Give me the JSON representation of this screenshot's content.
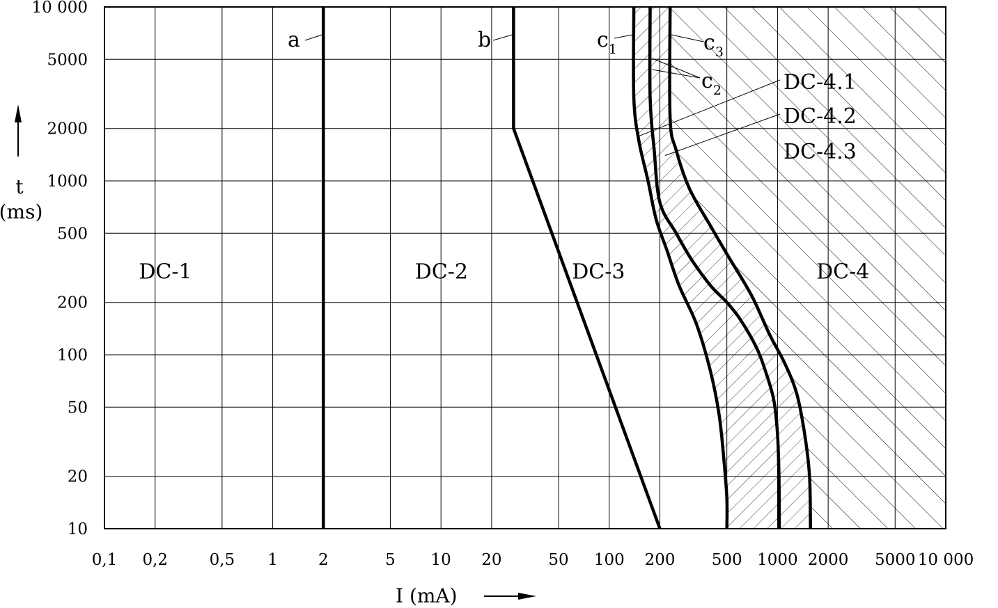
{
  "chart_data": {
    "type": "line",
    "title": "",
    "x_scale": "log",
    "y_scale": "log",
    "xlim": [
      0.1,
      10000
    ],
    "ylim": [
      10,
      10000
    ],
    "xlabel": "I (mA)",
    "ylabel_symbol": "t",
    "ylabel_unit": "(ms)",
    "grid": true,
    "x_ticks": [
      {
        "value": 0.1,
        "label": "0,1"
      },
      {
        "value": 0.2,
        "label": "0,2"
      },
      {
        "value": 0.5,
        "label": "0,5"
      },
      {
        "value": 1,
        "label": "1"
      },
      {
        "value": 2,
        "label": "2"
      },
      {
        "value": 5,
        "label": "5"
      },
      {
        "value": 10,
        "label": "10"
      },
      {
        "value": 20,
        "label": "20"
      },
      {
        "value": 50,
        "label": "50"
      },
      {
        "value": 100,
        "label": "100"
      },
      {
        "value": 200,
        "label": "200"
      },
      {
        "value": 500,
        "label": "500"
      },
      {
        "value": 1000,
        "label": "1000"
      },
      {
        "value": 2000,
        "label": "2000"
      },
      {
        "value": 5000,
        "label": "5000"
      },
      {
        "value": 10000,
        "label": "10 000"
      }
    ],
    "y_ticks": [
      {
        "value": 10,
        "label": "10"
      },
      {
        "value": 20,
        "label": "20"
      },
      {
        "value": 50,
        "label": "50"
      },
      {
        "value": 100,
        "label": "100"
      },
      {
        "value": 200,
        "label": "200"
      },
      {
        "value": 500,
        "label": "500"
      },
      {
        "value": 1000,
        "label": "1000"
      },
      {
        "value": 2000,
        "label": "2000"
      },
      {
        "value": 5000,
        "label": "5000"
      },
      {
        "value": 10000,
        "label": "10 000"
      }
    ],
    "zones": [
      {
        "label": "DC-1",
        "x": 0.16,
        "y": 300
      },
      {
        "label": "DC-2",
        "x": 7,
        "y": 300
      },
      {
        "label": "DC-3",
        "x": 60,
        "y": 300
      },
      {
        "label": "DC-4",
        "x": 1700,
        "y": 300
      }
    ],
    "series": [
      {
        "name": "a",
        "points": [
          [
            2,
            10
          ],
          [
            2,
            10000
          ]
        ]
      },
      {
        "name": "b",
        "points": [
          [
            27,
            10000
          ],
          [
            27,
            2000
          ],
          [
            200,
            10
          ]
        ]
      },
      {
        "name": "c",
        "sub": "1",
        "points": [
          [
            140,
            10000
          ],
          [
            140,
            3000
          ],
          [
            150,
            1700
          ],
          [
            170,
            1000
          ],
          [
            190,
            600
          ],
          [
            220,
            400
          ],
          [
            260,
            250
          ],
          [
            330,
            150
          ],
          [
            400,
            80
          ],
          [
            450,
            45
          ],
          [
            480,
            25
          ],
          [
            500,
            15
          ],
          [
            500,
            10
          ]
        ]
      },
      {
        "name": "c",
        "sub": "2",
        "points": [
          [
            175,
            10000
          ],
          [
            175,
            3000
          ],
          [
            185,
            1500
          ],
          [
            200,
            750
          ],
          [
            250,
            500
          ],
          [
            310,
            350
          ],
          [
            400,
            250
          ],
          [
            500,
            200
          ],
          [
            600,
            160
          ],
          [
            750,
            110
          ],
          [
            850,
            80
          ],
          [
            950,
            55
          ],
          [
            1000,
            35
          ],
          [
            1020,
            20
          ],
          [
            1025,
            10
          ]
        ]
      },
      {
        "name": "c",
        "sub": "3",
        "points": [
          [
            230,
            10000
          ],
          [
            230,
            2300
          ],
          [
            250,
            1500
          ],
          [
            300,
            900
          ],
          [
            400,
            550
          ],
          [
            500,
            380
          ],
          [
            700,
            220
          ],
          [
            900,
            130
          ],
          [
            1100,
            90
          ],
          [
            1300,
            60
          ],
          [
            1450,
            35
          ],
          [
            1550,
            20
          ],
          [
            1570,
            10
          ]
        ]
      }
    ],
    "region_labels": [
      {
        "label": "DC-4.1",
        "pointer_to": [
          148,
          1800
        ]
      },
      {
        "label": "DC-4.2",
        "pointer_to": [
          215,
          1400
        ]
      },
      {
        "label": "DC-4.3",
        "pointer_to": null
      }
    ]
  }
}
